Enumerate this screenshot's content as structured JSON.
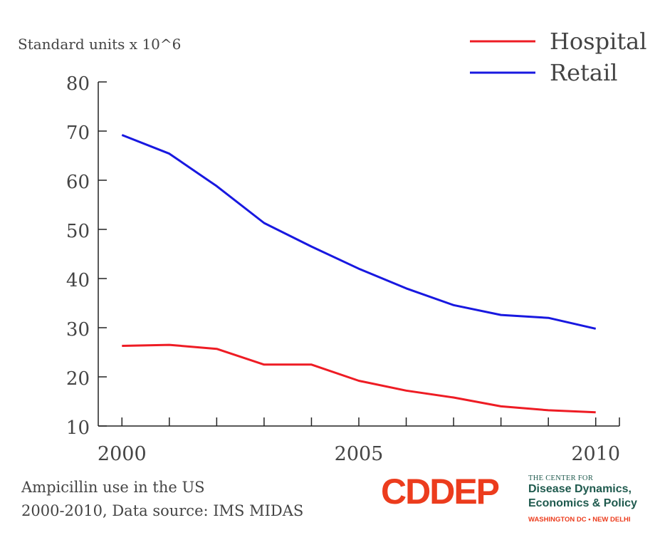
{
  "chart_data": {
    "type": "line",
    "ylabel": "Standard units x 10^6",
    "x": [
      2000,
      2001,
      2002,
      2003,
      2004,
      2005,
      2006,
      2007,
      2008,
      2009,
      2010
    ],
    "xticks": [
      "2000",
      "2005",
      "2010"
    ],
    "yticks": [
      "10",
      "20",
      "30",
      "40",
      "50",
      "60",
      "70",
      "80"
    ],
    "xlim": [
      1999.5,
      2010.5
    ],
    "ylim": [
      10,
      80
    ],
    "grid": false,
    "legend_position": "top-right",
    "series": [
      {
        "name": "Hospital",
        "color": "#ee1c24",
        "values": [
          26.3,
          26.5,
          25.7,
          22.5,
          22.5,
          19.2,
          17.2,
          15.8,
          14.0,
          13.2,
          12.8
        ]
      },
      {
        "name": "Retail",
        "color": "#1818e0",
        "values": [
          69.2,
          65.4,
          58.8,
          51.3,
          46.5,
          42.0,
          38.0,
          34.6,
          32.6,
          32.0,
          29.8
        ]
      }
    ]
  },
  "caption": {
    "line1": "Ampicillin use in the US",
    "line2": "2000-2010, Data source: IMS MIDAS"
  },
  "logo": {
    "mark": "CDDEP",
    "small": "THE CENTER FOR",
    "line1": "Disease Dynamics,",
    "line2": "Economics & Policy",
    "cities": "WASHINGTON DC • NEW DELHI"
  }
}
